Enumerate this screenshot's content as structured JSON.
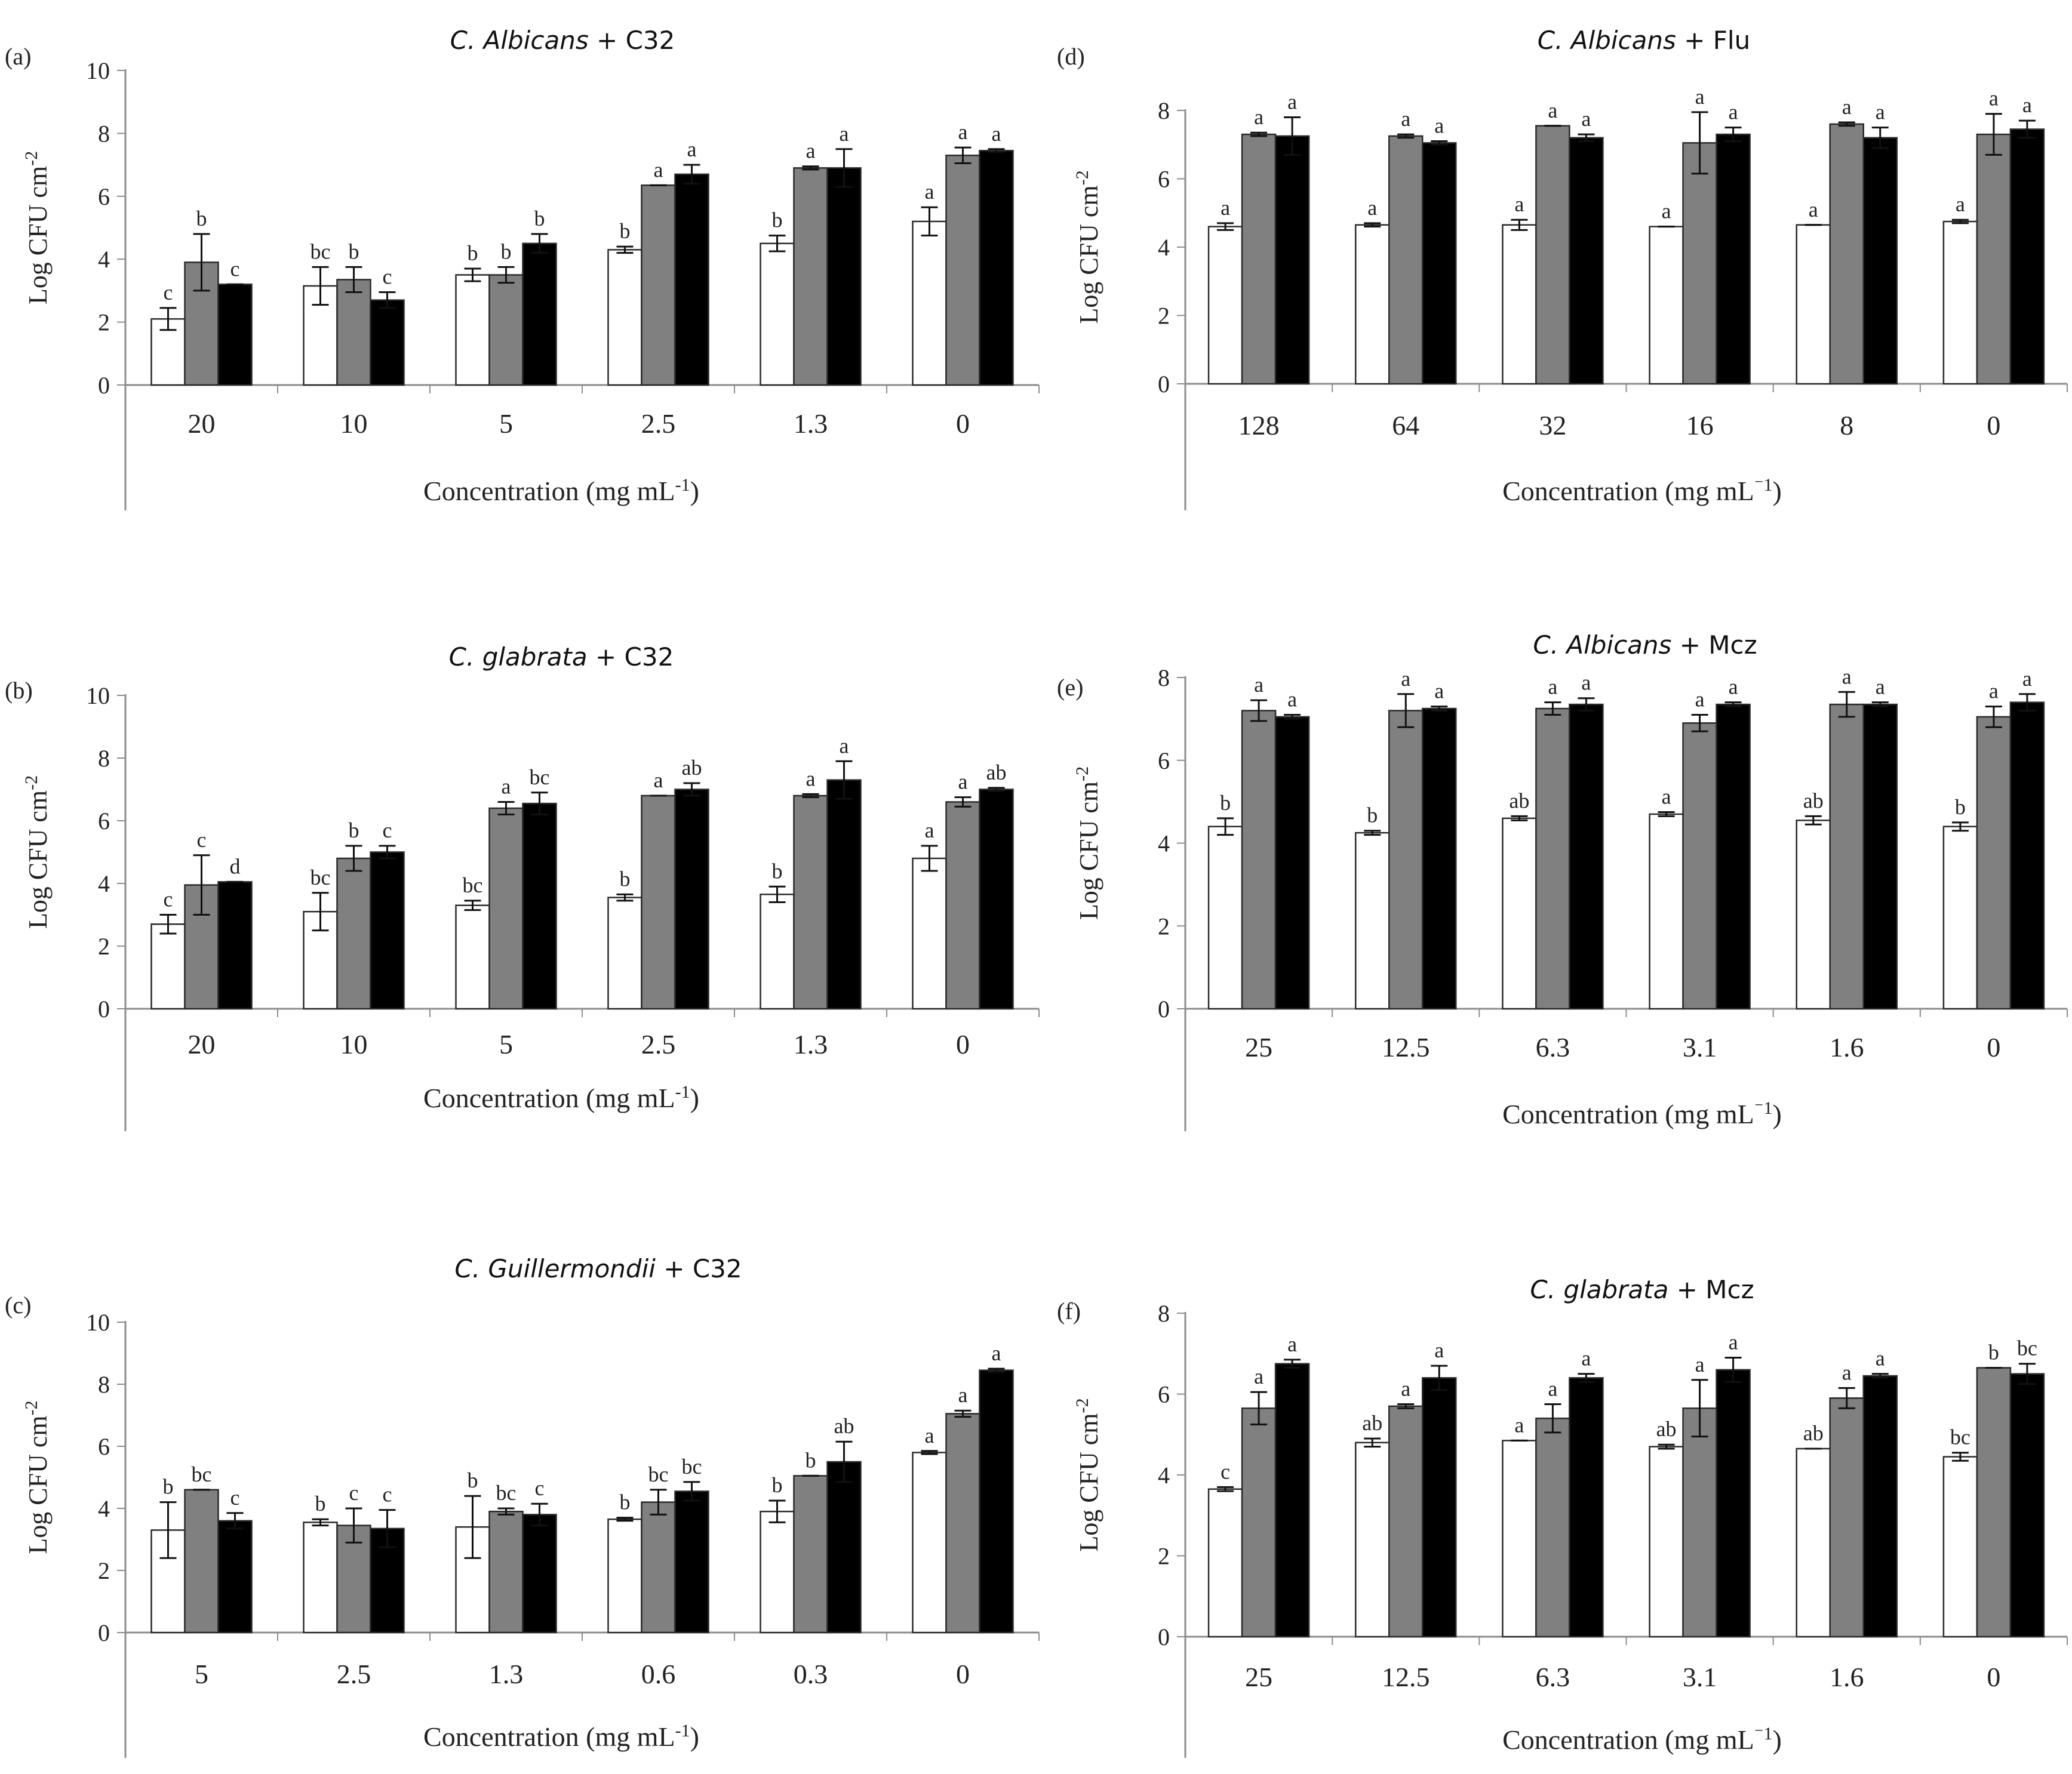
{
  "figure": {
    "series": [
      {
        "name": "series-1",
        "color": "#ffffff"
      },
      {
        "name": "series-2",
        "color": "#808080"
      },
      {
        "name": "series-3",
        "color": "#000000"
      }
    ]
  },
  "chart_data": [
    {
      "type": "bar",
      "panel": "(a)",
      "title_italic": "C. Albicans",
      "title_rest": " + C32",
      "ylabel": "Log CFU cm",
      "ylabel_sup": "-2",
      "xlabel": "Concentration  (mg  mL",
      "xlabel_sup": "-1",
      "xlabel_close": ")",
      "ylim": [
        0,
        10
      ],
      "yticks": [
        0,
        2,
        4,
        6,
        8,
        10
      ],
      "categories": [
        "20",
        "10",
        "5",
        "2.5",
        "1.3",
        "0"
      ],
      "series": [
        {
          "name": "series-1",
          "values": [
            2.1,
            3.15,
            3.5,
            4.3,
            4.5,
            5.2
          ],
          "errors": [
            0.35,
            0.6,
            0.2,
            0.1,
            0.25,
            0.45
          ],
          "labels": [
            "c",
            "bc",
            "b",
            "b",
            "b",
            "a"
          ]
        },
        {
          "name": "series-2",
          "values": [
            3.9,
            3.35,
            3.5,
            6.35,
            6.9,
            7.3
          ],
          "errors": [
            0.9,
            0.4,
            0.25,
            0.0,
            0.05,
            0.25
          ],
          "labels": [
            "b",
            "b",
            "b",
            "a",
            "a",
            "a"
          ]
        },
        {
          "name": "series-3",
          "values": [
            3.2,
            2.7,
            4.5,
            6.7,
            6.9,
            7.45
          ],
          "errors": [
            0.0,
            0.25,
            0.3,
            0.3,
            0.6,
            0.05
          ],
          "labels": [
            "c",
            "c",
            "b",
            "a",
            "a",
            "a"
          ]
        }
      ]
    },
    {
      "type": "bar",
      "panel": "(b)",
      "title_italic": "C. glabrata",
      "title_rest": " + C32",
      "ylabel": "Log CFU cm",
      "ylabel_sup": "-2",
      "xlabel": "Concentration  (mg  mL",
      "xlabel_sup": "-1",
      "xlabel_close": ")",
      "ylim": [
        0,
        10
      ],
      "yticks": [
        0,
        2,
        4,
        6,
        8,
        10
      ],
      "categories": [
        "20",
        "10",
        "5",
        "2.5",
        "1.3",
        "0"
      ],
      "series": [
        {
          "name": "series-1",
          "values": [
            2.7,
            3.1,
            3.3,
            3.55,
            3.65,
            4.8
          ],
          "errors": [
            0.3,
            0.6,
            0.15,
            0.1,
            0.25,
            0.4
          ],
          "labels": [
            "c",
            "bc",
            "bc",
            "b",
            "b",
            "a"
          ]
        },
        {
          "name": "series-2",
          "values": [
            3.95,
            4.8,
            6.4,
            6.8,
            6.8,
            6.6
          ],
          "errors": [
            0.95,
            0.4,
            0.2,
            0.0,
            0.05,
            0.15
          ],
          "labels": [
            "c",
            "b",
            "a",
            "a",
            "a",
            "a"
          ]
        },
        {
          "name": "series-3",
          "values": [
            4.05,
            5.0,
            6.55,
            7.0,
            7.3,
            7.0
          ],
          "errors": [
            0.0,
            0.2,
            0.35,
            0.2,
            0.6,
            0.05
          ],
          "labels": [
            "d",
            "c",
            "bc",
            "ab",
            "a",
            "ab"
          ]
        }
      ]
    },
    {
      "type": "bar",
      "panel": "(c)",
      "title_italic": "C. Guillermondii",
      "title_rest": " + C32",
      "ylabel": "Log CFU cm",
      "ylabel_sup": "-2",
      "xlabel": "Concentration  (mg  mL",
      "xlabel_sup": "-1",
      "xlabel_close": ")",
      "ylim": [
        0,
        10
      ],
      "yticks": [
        0,
        2,
        4,
        6,
        8,
        10
      ],
      "categories": [
        "5",
        "2.5",
        "1.3",
        "0.6",
        "0.3",
        "0"
      ],
      "series": [
        {
          "name": "series-1",
          "values": [
            3.3,
            3.55,
            3.4,
            3.65,
            3.9,
            5.8
          ],
          "errors": [
            0.9,
            0.1,
            1.0,
            0.05,
            0.35,
            0.05
          ],
          "labels": [
            "b",
            "b",
            "b",
            "b",
            "b",
            "a"
          ]
        },
        {
          "name": "series-2",
          "values": [
            4.6,
            3.45,
            3.9,
            4.2,
            5.05,
            7.05
          ],
          "errors": [
            0.0,
            0.55,
            0.1,
            0.4,
            0.0,
            0.1
          ],
          "labels": [
            "bc",
            "c",
            "bc",
            "bc",
            "b",
            "a"
          ]
        },
        {
          "name": "series-3",
          "values": [
            3.6,
            3.35,
            3.8,
            4.55,
            5.5,
            8.45
          ],
          "errors": [
            0.25,
            0.6,
            0.35,
            0.3,
            0.65,
            0.05
          ],
          "labels": [
            "c",
            "c",
            "c",
            "bc",
            "ab",
            "a"
          ]
        }
      ]
    },
    {
      "type": "bar",
      "panel": "(d)",
      "title_italic": "C. Albicans",
      "title_rest": " + Flu",
      "ylabel": "Log CFU cm",
      "ylabel_sup": "-2",
      "xlabel": "Concentration  (mg  mL",
      "xlabel_sup": "⁻1",
      "xlabel_close": ")",
      "ylim": [
        0,
        8
      ],
      "yticks": [
        0,
        2,
        4,
        6,
        8
      ],
      "categories": [
        "128",
        "64",
        "32",
        "16",
        "8",
        "0"
      ],
      "series": [
        {
          "name": "series-1",
          "values": [
            4.6,
            4.65,
            4.65,
            4.6,
            4.65,
            4.75
          ],
          "errors": [
            0.1,
            0.05,
            0.15,
            0.0,
            0.0,
            0.05
          ],
          "labels": [
            "a",
            "a",
            "a",
            "a",
            "a",
            "a"
          ]
        },
        {
          "name": "series-2",
          "values": [
            7.3,
            7.25,
            7.55,
            7.05,
            7.6,
            7.3
          ],
          "errors": [
            0.05,
            0.05,
            0.0,
            0.9,
            0.05,
            0.6
          ],
          "labels": [
            "a",
            "a",
            "a",
            "a",
            "a",
            "a"
          ]
        },
        {
          "name": "series-3",
          "values": [
            7.25,
            7.05,
            7.2,
            7.3,
            7.2,
            7.45
          ],
          "errors": [
            0.55,
            0.05,
            0.1,
            0.2,
            0.3,
            0.25
          ],
          "labels": [
            "a",
            "a",
            "a",
            "a",
            "a",
            "a"
          ]
        }
      ]
    },
    {
      "type": "bar",
      "panel": "(e)",
      "title_italic": "C. Albicans",
      "title_rest": " + Mcz",
      "ylabel": "Log CFU cm",
      "ylabel_sup": "-2",
      "xlabel": "Concentration  (mg  mL",
      "xlabel_sup": "⁻1",
      "xlabel_close": ")",
      "ylim": [
        0,
        8
      ],
      "yticks": [
        0,
        2,
        4,
        6,
        8
      ],
      "categories": [
        "25",
        "12.5",
        "6.3",
        "3.1",
        "1.6",
        "0"
      ],
      "series": [
        {
          "name": "series-1",
          "values": [
            4.4,
            4.25,
            4.6,
            4.7,
            4.55,
            4.4
          ],
          "errors": [
            0.2,
            0.05,
            0.05,
            0.05,
            0.1,
            0.1
          ],
          "labels": [
            "b",
            "b",
            "ab",
            "a",
            "ab",
            "b"
          ]
        },
        {
          "name": "series-2",
          "values": [
            7.2,
            7.2,
            7.25,
            6.9,
            7.35,
            7.05
          ],
          "errors": [
            0.25,
            0.4,
            0.15,
            0.2,
            0.3,
            0.25
          ],
          "labels": [
            "a",
            "a",
            "a",
            "a",
            "a",
            "a"
          ]
        },
        {
          "name": "series-3",
          "values": [
            7.05,
            7.25,
            7.35,
            7.35,
            7.35,
            7.4
          ],
          "errors": [
            0.05,
            0.05,
            0.15,
            0.05,
            0.05,
            0.2
          ],
          "labels": [
            "a",
            "a",
            "a",
            "a",
            "a",
            "a"
          ]
        }
      ]
    },
    {
      "type": "bar",
      "panel": "(f)",
      "title_italic": "C. glabrata",
      "title_rest": " + Mcz",
      "ylabel": "Log CFU cm",
      "ylabel_sup": "-2",
      "xlabel": "Concentration  (mg  mL",
      "xlabel_sup": "⁻1",
      "xlabel_close": ")",
      "ylim": [
        0,
        8
      ],
      "yticks": [
        0,
        2,
        4,
        6,
        8
      ],
      "categories": [
        "25",
        "12.5",
        "6.3",
        "3.1",
        "1.6",
        "0"
      ],
      "series": [
        {
          "name": "series-1",
          "values": [
            3.65,
            4.8,
            4.85,
            4.7,
            4.65,
            4.45
          ],
          "errors": [
            0.05,
            0.1,
            0.0,
            0.05,
            0.0,
            0.1
          ],
          "labels": [
            "c",
            "ab",
            "a",
            "ab",
            "ab",
            "bc"
          ]
        },
        {
          "name": "series-2",
          "values": [
            5.65,
            5.7,
            5.4,
            5.65,
            5.9,
            6.65
          ],
          "errors": [
            0.4,
            0.05,
            0.35,
            0.7,
            0.25,
            0.0
          ],
          "labels": [
            "a",
            "a",
            "a",
            "a",
            "a",
            "b"
          ]
        },
        {
          "name": "series-3",
          "values": [
            6.75,
            6.4,
            6.4,
            6.6,
            6.45,
            6.5
          ],
          "errors": [
            0.1,
            0.3,
            0.1,
            0.3,
            0.05,
            0.25
          ],
          "labels": [
            "a",
            "a",
            "a",
            "a",
            "a",
            "bc"
          ]
        }
      ]
    }
  ]
}
